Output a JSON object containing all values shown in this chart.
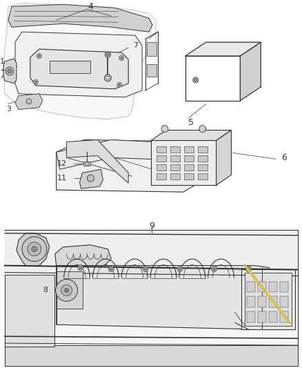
{
  "background_color": "#ffffff",
  "line_color": "#333333",
  "fig_width": 4.38,
  "fig_height": 5.33,
  "dpi": 100,
  "section1_label": "4",
  "section1_sublabels": [
    "1",
    "3",
    "7"
  ],
  "section2_label": "5",
  "section3_labels": [
    "6",
    "12",
    "11"
  ],
  "section4_labels": [
    "9",
    "8"
  ],
  "gray_light": "#c8c8c8",
  "gray_mid": "#a0a0a0",
  "gray_dark": "#707070",
  "gray_fill": "#e8e8e8",
  "gray_shade": "#d0d0d0"
}
